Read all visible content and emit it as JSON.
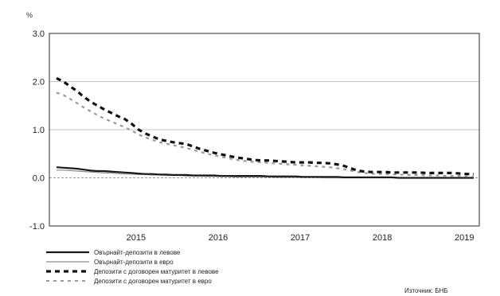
{
  "chart_data": {
    "type": "line",
    "ylabel": "%",
    "ylim": [
      -1.0,
      3.0
    ],
    "yticks": [
      "3.0",
      "2.0",
      "1.0",
      "0.0",
      "-1.0"
    ],
    "xticks": [
      "2015",
      "2016",
      "2017",
      "2018",
      "2019"
    ],
    "grid": true,
    "legend_position": "bottom-left",
    "source": "Източник: БНБ",
    "x": [
      "2014-09",
      "2014-10",
      "2014-11",
      "2014-12",
      "2015-01",
      "2015-02",
      "2015-03",
      "2015-04",
      "2015-05",
      "2015-06",
      "2015-07",
      "2015-08",
      "2015-09",
      "2015-10",
      "2015-11",
      "2015-12",
      "2016-01",
      "2016-02",
      "2016-03",
      "2016-04",
      "2016-05",
      "2016-06",
      "2016-07",
      "2016-08",
      "2016-09",
      "2016-10",
      "2016-11",
      "2016-12",
      "2017-01",
      "2017-02",
      "2017-03",
      "2017-04",
      "2017-05",
      "2017-06",
      "2017-07",
      "2017-08",
      "2017-09",
      "2017-10",
      "2017-11",
      "2017-12",
      "2018-01",
      "2018-02",
      "2018-03",
      "2018-04",
      "2018-05",
      "2018-06",
      "2018-07",
      "2018-08",
      "2018-09",
      "2018-10",
      "2018-11",
      "2018-12",
      "2019-01",
      "2019-02",
      "2019-03",
      "2019-04",
      "2019-05",
      "2019-06",
      "2019-07",
      "2019-08",
      "2019-09",
      "2019-10"
    ],
    "series": [
      {
        "name": "Овърнайт-депозити в левове",
        "color": "#1a1a1a",
        "style": "solid",
        "values": [
          0.22,
          0.21,
          0.2,
          0.19,
          0.17,
          0.15,
          0.14,
          0.14,
          0.13,
          0.12,
          0.11,
          0.1,
          0.09,
          0.08,
          0.08,
          0.07,
          0.07,
          0.06,
          0.06,
          0.06,
          0.05,
          0.05,
          0.05,
          0.05,
          0.04,
          0.04,
          0.04,
          0.04,
          0.04,
          0.04,
          0.04,
          0.03,
          0.03,
          0.03,
          0.03,
          0.03,
          0.02,
          0.02,
          0.02,
          0.02,
          0.02,
          0.02,
          0.01,
          0.01,
          0.01,
          0.01,
          0.01,
          0.01,
          0.01,
          0.01,
          0.0,
          0.0,
          0.0,
          0.0,
          0.0,
          0.0,
          0.0,
          0.0,
          0.0,
          0.0,
          0.0,
          0.0
        ]
      },
      {
        "name": "Овърнайт-депозити в евро",
        "color": "#8a8a8a",
        "style": "solid",
        "values": [
          0.16,
          0.16,
          0.15,
          0.14,
          0.13,
          0.12,
          0.11,
          0.1,
          0.1,
          0.09,
          0.08,
          0.08,
          0.07,
          0.07,
          0.06,
          0.06,
          0.05,
          0.05,
          0.05,
          0.04,
          0.04,
          0.04,
          0.03,
          0.03,
          0.03,
          0.03,
          0.02,
          0.02,
          0.02,
          0.02,
          0.02,
          0.02,
          0.01,
          0.01,
          0.01,
          0.01,
          0.01,
          0.01,
          0.01,
          0.0,
          0.0,
          0.0,
          0.0,
          0.0,
          0.0,
          0.0,
          0.0,
          0.0,
          0.0,
          0.0,
          0.0,
          0.0,
          0.0,
          0.0,
          0.0,
          0.0,
          0.0,
          0.0,
          0.0,
          0.0,
          0.0,
          0.0
        ]
      },
      {
        "name": "Депозити с договорен матуритет в левове",
        "color": "#111111",
        "style": "dashed",
        "values": [
          2.07,
          2.0,
          1.9,
          1.8,
          1.68,
          1.58,
          1.5,
          1.42,
          1.35,
          1.28,
          1.22,
          1.12,
          1.0,
          0.92,
          0.86,
          0.8,
          0.77,
          0.74,
          0.72,
          0.7,
          0.65,
          0.6,
          0.56,
          0.52,
          0.49,
          0.46,
          0.43,
          0.41,
          0.39,
          0.37,
          0.36,
          0.36,
          0.35,
          0.34,
          0.33,
          0.32,
          0.32,
          0.32,
          0.31,
          0.31,
          0.3,
          0.28,
          0.25,
          0.2,
          0.15,
          0.13,
          0.12,
          0.12,
          0.12,
          0.11,
          0.11,
          0.11,
          0.11,
          0.11,
          0.1,
          0.1,
          0.1,
          0.1,
          0.1,
          0.09,
          0.08,
          0.08
        ]
      },
      {
        "name": "Депозити с договорен матуритет в евро",
        "color": "#9a9a9a",
        "style": "dashed",
        "values": [
          1.77,
          1.72,
          1.64,
          1.55,
          1.46,
          1.38,
          1.3,
          1.23,
          1.17,
          1.11,
          1.05,
          0.98,
          0.9,
          0.84,
          0.79,
          0.74,
          0.71,
          0.68,
          0.65,
          0.62,
          0.58,
          0.54,
          0.5,
          0.47,
          0.44,
          0.41,
          0.38,
          0.36,
          0.34,
          0.33,
          0.32,
          0.31,
          0.3,
          0.29,
          0.28,
          0.27,
          0.26,
          0.25,
          0.24,
          0.23,
          0.22,
          0.2,
          0.18,
          0.15,
          0.12,
          0.1,
          0.09,
          0.08,
          0.08,
          0.07,
          0.07,
          0.06,
          0.06,
          0.06,
          0.05,
          0.05,
          0.05,
          0.04,
          0.04,
          0.04,
          0.03,
          0.03
        ]
      }
    ]
  }
}
